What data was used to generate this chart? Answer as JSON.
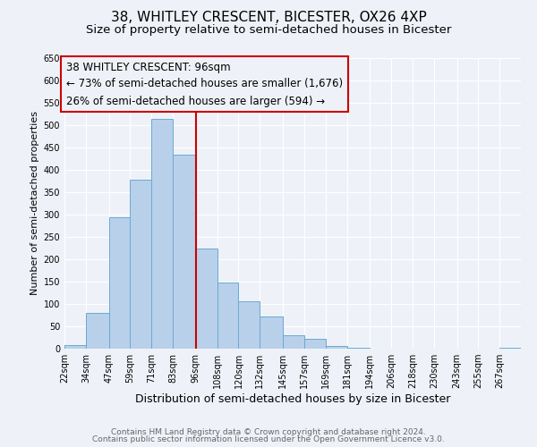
{
  "title": "38, WHITLEY CRESCENT, BICESTER, OX26 4XP",
  "subtitle": "Size of property relative to semi-detached houses in Bicester",
  "xlabel": "Distribution of semi-detached houses by size in Bicester",
  "ylabel": "Number of semi-detached properties",
  "footnote1": "Contains HM Land Registry data © Crown copyright and database right 2024.",
  "footnote2": "Contains public sector information licensed under the Open Government Licence v3.0.",
  "annotation_title": "38 WHITLEY CRESCENT: 96sqm",
  "annotation_line1": "← 73% of semi-detached houses are smaller (1,676)",
  "annotation_line2": "26% of semi-detached houses are larger (594) →",
  "property_size": 96,
  "bin_edges": [
    22,
    34,
    47,
    59,
    71,
    83,
    96,
    108,
    120,
    132,
    145,
    157,
    169,
    181,
    194,
    206,
    218,
    230,
    243,
    255,
    267
  ],
  "bin_counts": [
    8,
    80,
    295,
    378,
    515,
    435,
    225,
    148,
    106,
    72,
    30,
    22,
    7,
    2,
    0,
    0,
    0,
    0,
    0,
    0,
    3
  ],
  "bar_color": "#b8d0ea",
  "bar_edge_color": "#6aaad4",
  "vline_color": "#cc0000",
  "box_edge_color": "#cc0000",
  "ylim": [
    0,
    650
  ],
  "yticks": [
    0,
    50,
    100,
    150,
    200,
    250,
    300,
    350,
    400,
    450,
    500,
    550,
    600,
    650
  ],
  "background_color": "#eef2f8",
  "grid_color": "#ffffff",
  "title_fontsize": 11,
  "subtitle_fontsize": 9.5,
  "xlabel_fontsize": 9,
  "ylabel_fontsize": 8,
  "tick_fontsize": 7,
  "annotation_fontsize": 8.5,
  "footnote_fontsize": 6.5
}
